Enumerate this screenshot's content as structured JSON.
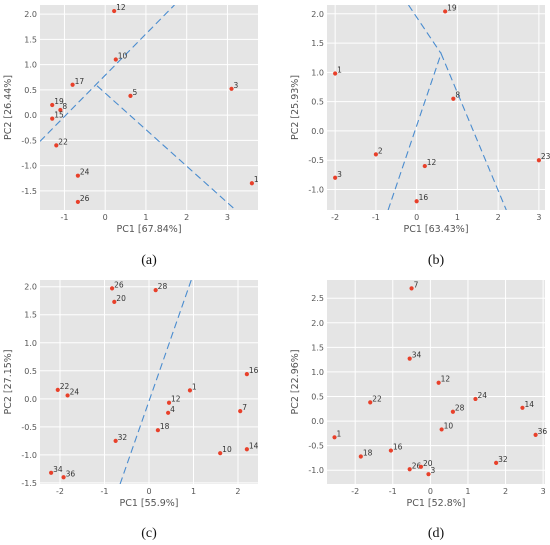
{
  "chart_data": [
    {
      "type": "scatter",
      "caption": "(a)",
      "xlabel": "PC1 [67.84%]",
      "ylabel": "PC2 [26.44%]",
      "xlim": [
        -1.6,
        3.75
      ],
      "ylim": [
        -1.88,
        2.18
      ],
      "xticks": [
        -1,
        0,
        1,
        2,
        3
      ],
      "yticks": [
        -1.5,
        -1.0,
        -0.5,
        0.0,
        0.5,
        1.0,
        1.5,
        2.0
      ],
      "grid": true,
      "points": [
        {
          "label": "12",
          "x": 0.22,
          "y": 2.06
        },
        {
          "label": "10",
          "x": 0.26,
          "y": 1.1
        },
        {
          "label": "17",
          "x": -0.8,
          "y": 0.6
        },
        {
          "label": "5",
          "x": 0.62,
          "y": 0.38
        },
        {
          "label": "3",
          "x": 3.1,
          "y": 0.52
        },
        {
          "label": "19",
          "x": -1.3,
          "y": 0.2
        },
        {
          "label": "8",
          "x": -1.1,
          "y": 0.1
        },
        {
          "label": "15",
          "x": -1.3,
          "y": -0.07
        },
        {
          "label": "22",
          "x": -1.2,
          "y": -0.6
        },
        {
          "label": "24",
          "x": -0.67,
          "y": -1.2
        },
        {
          "label": "26",
          "x": -0.67,
          "y": -1.72
        },
        {
          "label": "1",
          "x": 3.6,
          "y": -1.35
        }
      ],
      "boundaries": [
        {
          "x": [
            -1.6,
            1.7
          ],
          "y": [
            -0.52,
            2.18
          ]
        },
        {
          "x": [
            -0.2,
            3.2
          ],
          "y": [
            0.58,
            -1.88
          ]
        }
      ]
    },
    {
      "type": "scatter",
      "caption": "(b)",
      "xlabel": "PC1 [63.43%]",
      "ylabel": "PC2 [25.93%]",
      "xlim": [
        -2.2,
        3.15
      ],
      "ylim": [
        -1.35,
        2.15
      ],
      "xticks": [
        -2,
        -1,
        0,
        1,
        2,
        3
      ],
      "yticks": [
        -1.0,
        -0.5,
        0.0,
        0.5,
        1.0,
        1.5,
        2.0
      ],
      "grid": true,
      "points": [
        {
          "label": "19",
          "x": 0.7,
          "y": 2.04
        },
        {
          "label": "1",
          "x": -2.0,
          "y": 0.98
        },
        {
          "label": "8",
          "x": 0.9,
          "y": 0.55
        },
        {
          "label": "2",
          "x": -1.0,
          "y": -0.4
        },
        {
          "label": "12",
          "x": 0.2,
          "y": -0.6
        },
        {
          "label": "23",
          "x": 3.0,
          "y": -0.5
        },
        {
          "label": "3",
          "x": -2.0,
          "y": -0.8
        },
        {
          "label": "16",
          "x": 0.0,
          "y": -1.2
        }
      ],
      "boundaries": [
        {
          "x": [
            -0.7,
            0.6,
            2.2
          ],
          "y": [
            -1.35,
            1.32,
            -1.35
          ]
        },
        {
          "x": [
            -0.2,
            0.6
          ],
          "y": [
            2.15,
            1.32
          ]
        }
      ]
    },
    {
      "type": "scatter",
      "caption": "(c)",
      "xlabel": "PC1 [55.9%]",
      "ylabel": "PC2 [27.15%]",
      "xlim": [
        -2.45,
        2.45
      ],
      "ylim": [
        -1.52,
        2.12
      ],
      "xticks": [
        -2,
        -1,
        0,
        1,
        2
      ],
      "yticks": [
        -1.5,
        -1.0,
        -0.5,
        0.0,
        0.5,
        1.0,
        1.5,
        2.0
      ],
      "grid": true,
      "points": [
        {
          "label": "26",
          "x": -0.83,
          "y": 1.97
        },
        {
          "label": "28",
          "x": 0.15,
          "y": 1.94
        },
        {
          "label": "20",
          "x": -0.78,
          "y": 1.73
        },
        {
          "label": "16",
          "x": 2.2,
          "y": 0.44
        },
        {
          "label": "22",
          "x": -2.05,
          "y": 0.16
        },
        {
          "label": "1",
          "x": 0.92,
          "y": 0.15
        },
        {
          "label": "24",
          "x": -1.83,
          "y": 0.06
        },
        {
          "label": "12",
          "x": 0.45,
          "y": -0.07
        },
        {
          "label": "4",
          "x": 0.43,
          "y": -0.25
        },
        {
          "label": "7",
          "x": 2.05,
          "y": -0.22
        },
        {
          "label": "18",
          "x": 0.2,
          "y": -0.56
        },
        {
          "label": "32",
          "x": -0.75,
          "y": -0.75
        },
        {
          "label": "10",
          "x": 1.6,
          "y": -0.97
        },
        {
          "label": "14",
          "x": 2.2,
          "y": -0.9
        },
        {
          "label": "34",
          "x": -2.2,
          "y": -1.32
        },
        {
          "label": "36",
          "x": -1.92,
          "y": -1.4
        }
      ],
      "boundaries": [
        {
          "x": [
            -0.65,
            0.95
          ],
          "y": [
            -1.52,
            2.12
          ]
        }
      ]
    },
    {
      "type": "scatter",
      "caption": "(d)",
      "xlabel": "PC1 [52.8%]",
      "ylabel": "PC2 [22.96%]",
      "xlim": [
        -2.75,
        3.05
      ],
      "ylim": [
        -1.28,
        2.87
      ],
      "xticks": [
        -2,
        -1,
        0,
        1,
        2,
        3
      ],
      "yticks": [
        -1.0,
        -0.5,
        0.0,
        0.5,
        1.0,
        1.5,
        2.0,
        2.5
      ],
      "grid": true,
      "points": [
        {
          "label": "7",
          "x": -0.5,
          "y": 2.7
        },
        {
          "label": "34",
          "x": -0.55,
          "y": 1.27
        },
        {
          "label": "12",
          "x": 0.22,
          "y": 0.78
        },
        {
          "label": "24",
          "x": 1.2,
          "y": 0.45
        },
        {
          "label": "22",
          "x": -1.6,
          "y": 0.38
        },
        {
          "label": "14",
          "x": 2.45,
          "y": 0.27
        },
        {
          "label": "28",
          "x": 0.6,
          "y": 0.19
        },
        {
          "label": "36",
          "x": 2.8,
          "y": -0.28
        },
        {
          "label": "10",
          "x": 0.3,
          "y": -0.17
        },
        {
          "label": "1",
          "x": -2.55,
          "y": -0.33
        },
        {
          "label": "16",
          "x": -1.05,
          "y": -0.6
        },
        {
          "label": "18",
          "x": -1.85,
          "y": -0.72
        },
        {
          "label": "32",
          "x": 1.75,
          "y": -0.85
        },
        {
          "label": "26",
          "x": -0.55,
          "y": -0.98
        },
        {
          "label": "20",
          "x": -0.25,
          "y": -0.93
        },
        {
          "label": "3",
          "x": -0.05,
          "y": -1.08
        }
      ],
      "boundaries": []
    }
  ]
}
